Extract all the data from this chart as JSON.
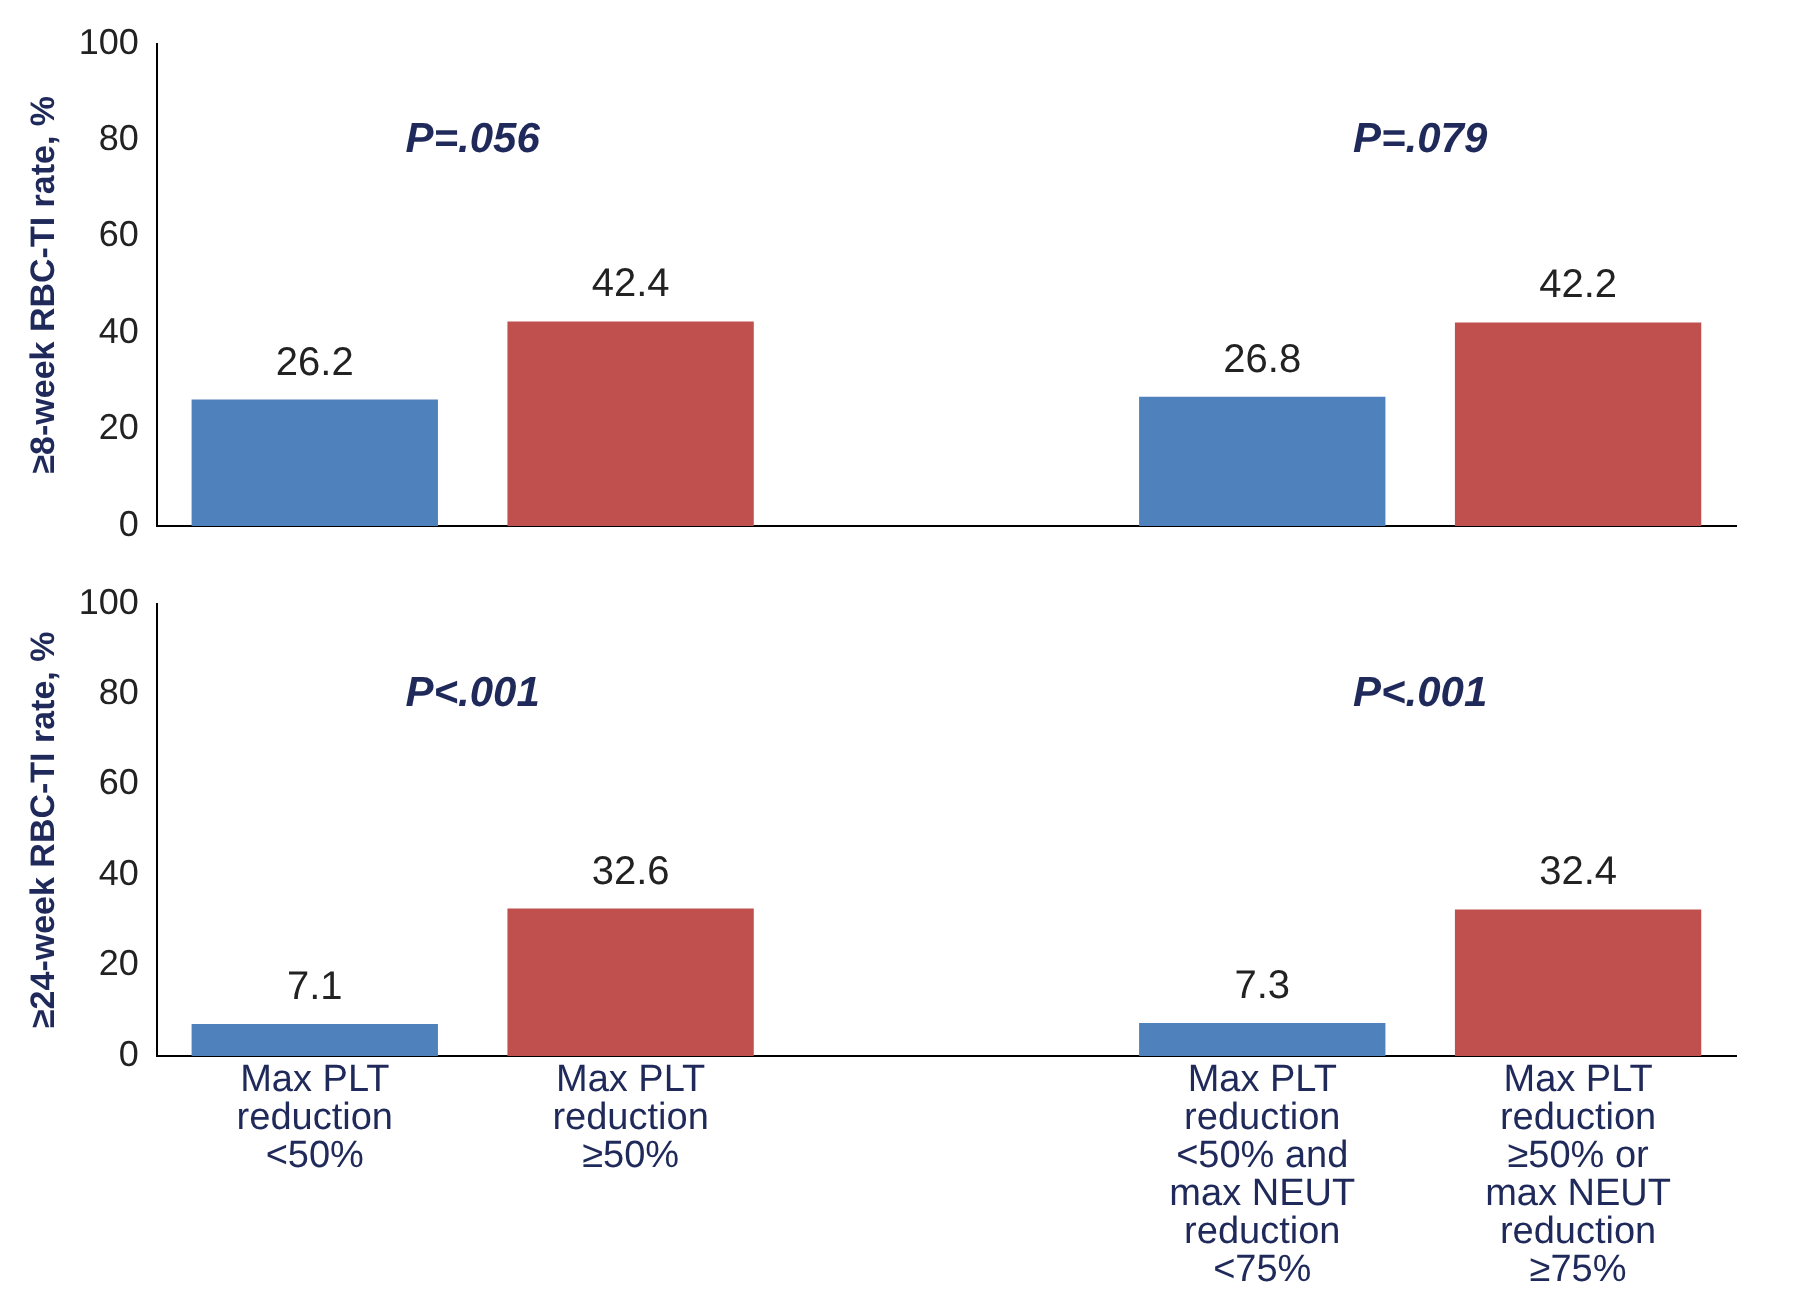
{
  "chart_data": [
    {
      "type": "bar",
      "ylabel": "≥8-week RBC-TI rate, %",
      "categories": [
        null,
        null,
        null,
        null,
        null
      ],
      "values": [
        26.2,
        42.4,
        null,
        26.8,
        42.2
      ],
      "colors": [
        "#4f81bd",
        "#c0504d",
        "#ffffff",
        "#4f81bd",
        "#c0504d"
      ],
      "ylim": [
        0,
        100
      ],
      "yticks": [
        0,
        20,
        40,
        60,
        80,
        100
      ],
      "data_labels": true,
      "grid": false,
      "legend": false,
      "annotations": [
        "P=.056",
        "P=.079"
      ]
    },
    {
      "type": "bar",
      "ylabel": "≥24-week RBC-TI rate, %",
      "categories": [
        "Max PLT reduction <50%",
        "Max PLT reduction ≥50%",
        null,
        "Max PLT reduction <50% and max NEUT reduction <75%",
        "Max PLT reduction ≥50% or max NEUT reduction ≥75%"
      ],
      "values": [
        7.1,
        32.6,
        null,
        7.3,
        32.4
      ],
      "colors": [
        "#4f81bd",
        "#c0504d",
        "#ffffff",
        "#4f81bd",
        "#c0504d"
      ],
      "ylim": [
        0,
        100
      ],
      "yticks": [
        0,
        20,
        40,
        60,
        80,
        100
      ],
      "data_labels": true,
      "grid": false,
      "legend": false,
      "annotations": [
        "P<.001",
        "P<.001"
      ]
    }
  ]
}
